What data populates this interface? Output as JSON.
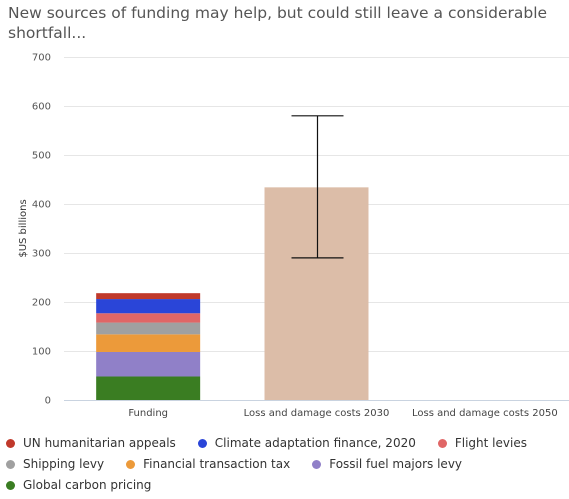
{
  "title": "New sources of funding may help, but could still leave a considerable shortfall...",
  "chart_data": {
    "type": "bar",
    "stacked": true,
    "ylabel": "$US billions",
    "ylim": [
      0,
      700
    ],
    "yticks": [
      0,
      100,
      200,
      300,
      400,
      500,
      600,
      700
    ],
    "grid": true,
    "legend_position": "bottom",
    "categories": [
      "Funding",
      "Loss and damage costs 2030",
      "Loss and damage costs 2050"
    ],
    "funding_series": [
      {
        "name": "Global carbon pricing",
        "value": 48,
        "color": "#3a7d22"
      },
      {
        "name": "Fossil fuel majors levy",
        "value": 50,
        "color": "#9080c8"
      },
      {
        "name": "Financial transaction tax",
        "value": 36,
        "color": "#ec9a3a"
      },
      {
        "name": "Shipping levy",
        "value": 24,
        "color": "#a0a0a0"
      },
      {
        "name": "Flight levies",
        "value": 19,
        "color": "#e06666"
      },
      {
        "name": "Climate adaptation finance, 2020",
        "value": 29,
        "color": "#2a45d8"
      },
      {
        "name": "UN humanitarian appeals",
        "value": 12,
        "color": "#c0392b"
      }
    ],
    "loss_2030": {
      "value": 434,
      "error_low": 290,
      "error_high": 580,
      "color": "#dcbda8"
    },
    "loss_2050": {
      "value": null
    }
  },
  "legend": [
    [
      {
        "name": "UN humanitarian appeals",
        "color": "#c0392b"
      },
      {
        "name": "Climate adaptation finance, 2020",
        "color": "#2a45d8"
      },
      {
        "name": "Flight levies",
        "color": "#e06666"
      }
    ],
    [
      {
        "name": "Shipping levy",
        "color": "#a0a0a0"
      },
      {
        "name": "Financial transaction tax",
        "color": "#ec9a3a"
      },
      {
        "name": "Fossil fuel majors levy",
        "color": "#9080c8"
      }
    ],
    [
      {
        "name": "Global carbon pricing",
        "color": "#3a7d22"
      }
    ]
  ]
}
